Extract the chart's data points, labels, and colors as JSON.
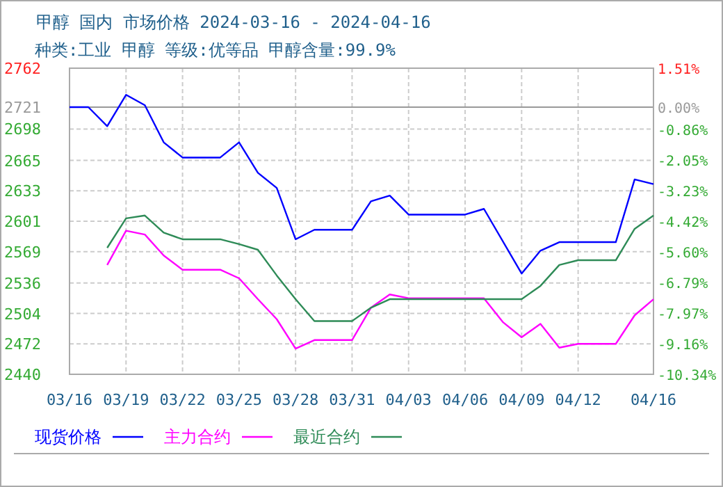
{
  "chart_data": {
    "type": "line",
    "title": "甲醇 国内 市场价格 2024-03-16 - 2024-04-16",
    "subtitle": "种类:工业 甲醇 等级:优等品 甲醇含量:99.9%",
    "xlim": [
      "2024-03-16",
      "2024-04-16"
    ],
    "xticks": [
      {
        "value": "2024-03-16",
        "label": "03/16"
      },
      {
        "value": "2024-03-19",
        "label": "03/19"
      },
      {
        "value": "2024-03-22",
        "label": "03/22"
      },
      {
        "value": "2024-03-25",
        "label": "03/25"
      },
      {
        "value": "2024-03-28",
        "label": "03/28"
      },
      {
        "value": "2024-03-31",
        "label": "03/31"
      },
      {
        "value": "2024-04-03",
        "label": "04/03"
      },
      {
        "value": "2024-04-06",
        "label": "04/06"
      },
      {
        "value": "2024-04-09",
        "label": "04/09"
      },
      {
        "value": "2024-04-12",
        "label": "04/12"
      },
      {
        "value": "2024-04-16",
        "label": "04/16"
      }
    ],
    "ylim": [
      2440,
      2762
    ],
    "yticks": [
      2440,
      2472,
      2504,
      2536,
      2569,
      2601,
      2633,
      2665,
      2698,
      2721,
      2762
    ],
    "y2lim": [
      -10.34,
      1.51
    ],
    "y2ticks": [
      {
        "value": -10.34,
        "label": "-10.34%"
      },
      {
        "value": -9.16,
        "label": "-9.16%"
      },
      {
        "value": -7.97,
        "label": "-7.97%"
      },
      {
        "value": -6.79,
        "label": "-6.79%"
      },
      {
        "value": -5.6,
        "label": "-5.60%"
      },
      {
        "value": -4.42,
        "label": "-4.42%"
      },
      {
        "value": -3.23,
        "label": "-3.23%"
      },
      {
        "value": -2.05,
        "label": "-2.05%"
      },
      {
        "value": -0.86,
        "label": "-0.86%"
      },
      {
        "value": 0,
        "label": "0.00%"
      },
      {
        "value": 1.51,
        "label": "1.51%"
      }
    ],
    "grid": true,
    "legend": "bottom",
    "ref_lines": [
      {
        "axis": "y",
        "value": 2721,
        "color": "#999999"
      }
    ],
    "series": [
      {
        "name": "现货价格",
        "color": "#0000ff",
        "x": [
          "2024-03-16",
          "2024-03-17",
          "2024-03-18",
          "2024-03-19",
          "2024-03-20",
          "2024-03-21",
          "2024-03-22",
          "2024-03-24",
          "2024-03-25",
          "2024-03-26",
          "2024-03-27",
          "2024-03-28",
          "2024-03-29",
          "2024-03-31",
          "2024-04-01",
          "2024-04-02",
          "2024-04-03",
          "2024-04-06",
          "2024-04-07",
          "2024-04-09",
          "2024-04-10",
          "2024-04-11",
          "2024-04-14",
          "2024-04-15",
          "2024-04-16"
        ],
        "values": [
          2721,
          2721,
          2701,
          2734,
          2723,
          2684,
          2668,
          2668,
          2684,
          2652,
          2636,
          2582,
          2592,
          2592,
          2622,
          2628,
          2608,
          2608,
          2614,
          2546,
          2570,
          2579,
          2579,
          2645,
          2640
        ]
      },
      {
        "name": "主力合约",
        "color": "#ff00ff",
        "x": [
          "2024-03-18",
          "2024-03-19",
          "2024-03-20",
          "2024-03-21",
          "2024-03-22",
          "2024-03-24",
          "2024-03-25",
          "2024-03-26",
          "2024-03-27",
          "2024-03-28",
          "2024-03-29",
          "2024-03-31",
          "2024-04-01",
          "2024-04-02",
          "2024-04-03",
          "2024-04-07",
          "2024-04-08",
          "2024-04-09",
          "2024-04-10",
          "2024-04-11",
          "2024-04-12",
          "2024-04-14",
          "2024-04-15",
          "2024-04-16"
        ],
        "values": [
          2555,
          2591,
          2587,
          2565,
          2550,
          2550,
          2541,
          2519,
          2498,
          2467,
          2476,
          2476,
          2510,
          2524,
          2520,
          2520,
          2495,
          2479,
          2493,
          2468,
          2472,
          2472,
          2502,
          2519
        ]
      },
      {
        "name": "最近合约",
        "color": "#2e8b57",
        "x": [
          "2024-03-18",
          "2024-03-19",
          "2024-03-20",
          "2024-03-21",
          "2024-03-22",
          "2024-03-24",
          "2024-03-25",
          "2024-03-26",
          "2024-03-27",
          "2024-03-28",
          "2024-03-29",
          "2024-03-31",
          "2024-04-01",
          "2024-04-02",
          "2024-04-09",
          "2024-04-10",
          "2024-04-11",
          "2024-04-12",
          "2024-04-14",
          "2024-04-15",
          "2024-04-16"
        ],
        "values": [
          2573,
          2604,
          2607,
          2589,
          2582,
          2582,
          2577,
          2571,
          2544,
          2519,
          2496,
          2496,
          2510,
          2519,
          2519,
          2533,
          2555,
          2560,
          2560,
          2593,
          2607
        ]
      }
    ]
  }
}
